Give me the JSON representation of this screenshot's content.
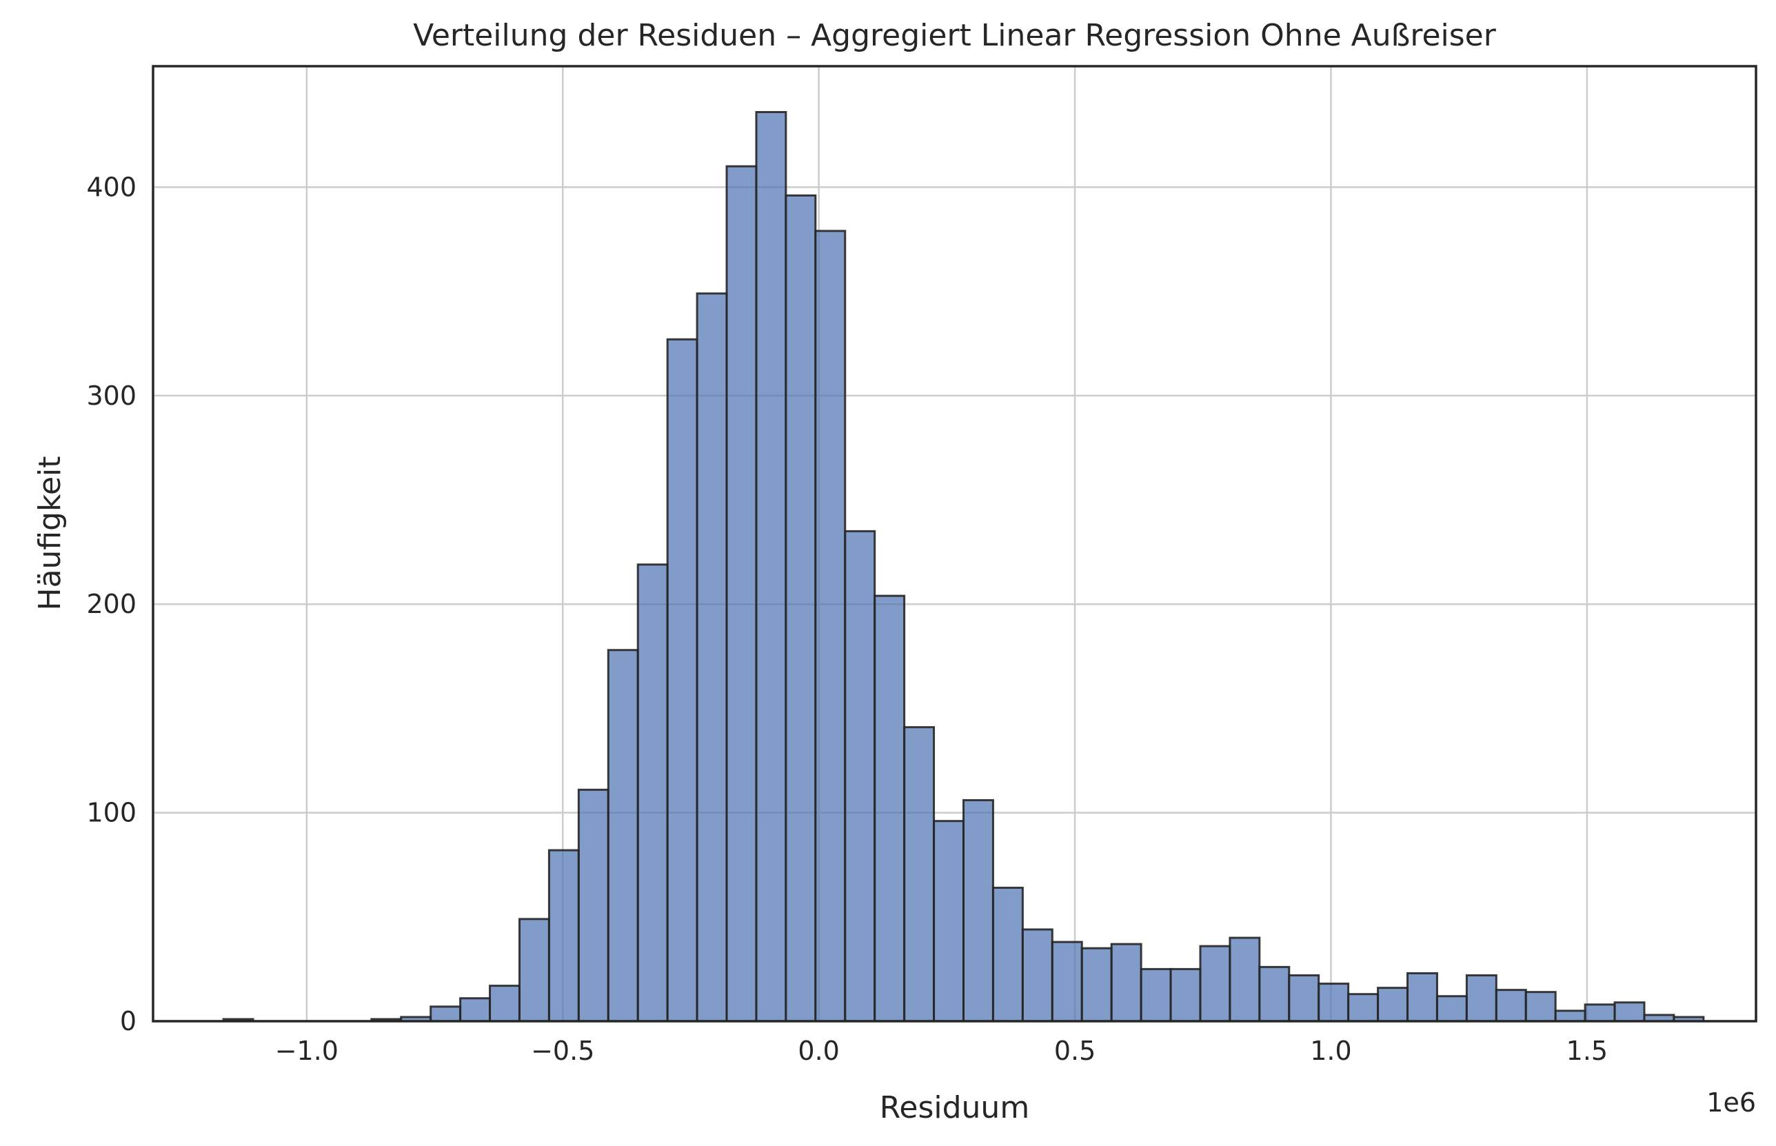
{
  "chart_data": {
    "type": "bar",
    "subtype": "histogram",
    "title": "Verteilung der Residuen – Aggregiert Linear Regression Ohne Außreiser",
    "xlabel": "Residuum",
    "ylabel": "Häufigkeit",
    "x_offset_label": "1e6",
    "x_scale": 1000000,
    "xlim": [
      -1.3,
      1.83
    ],
    "ylim": [
      0,
      458
    ],
    "xticks": [
      -1.0,
      -0.5,
      0.0,
      0.5,
      1.0,
      1.5
    ],
    "xtick_labels": [
      "−1.0",
      "−0.5",
      "0.0",
      "0.5",
      "1.0",
      "1.5"
    ],
    "yticks": [
      0,
      100,
      200,
      300,
      400
    ],
    "ytick_labels": [
      "0",
      "100",
      "200",
      "300",
      "400"
    ],
    "grid": true,
    "bin_start": -1.1625,
    "bin_width": 0.0578,
    "values": [
      1,
      0,
      0,
      0,
      0,
      1,
      2,
      7,
      11,
      17,
      49,
      82,
      111,
      178,
      219,
      327,
      349,
      410,
      436,
      396,
      379,
      235,
      204,
      141,
      96,
      106,
      64,
      44,
      38,
      35,
      37,
      25,
      25,
      36,
      40,
      26,
      22,
      18,
      13,
      16,
      23,
      12,
      22,
      15,
      14,
      5,
      8,
      9,
      3,
      2
    ],
    "bar_color": "#4c72b0",
    "bar_edge_color": "#262626"
  }
}
